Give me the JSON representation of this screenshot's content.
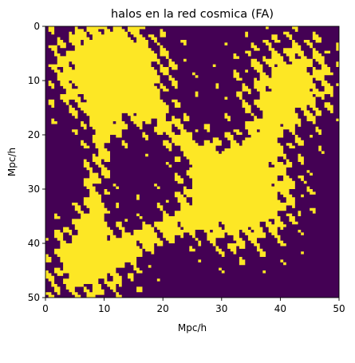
{
  "chart_data": {
    "type": "heatmap",
    "title": "halos en la red cosmica (FA)",
    "xlabel": "Mpc/h",
    "ylabel": "Mpc/h",
    "xlim": [
      0,
      50
    ],
    "ylim": [
      50,
      0
    ],
    "x_ticks": [
      0,
      10,
      20,
      30,
      40,
      50
    ],
    "y_ticks": [
      0,
      10,
      20,
      30,
      40,
      50
    ],
    "x_tick_labels": [
      "0",
      "10",
      "20",
      "30",
      "40",
      "50"
    ],
    "y_tick_labels": [
      "0",
      "10",
      "20",
      "30",
      "40",
      "50"
    ],
    "grid": false,
    "legend": "none",
    "colormap": "viridis",
    "values": [
      0,
      1
    ],
    "colors": {
      "background_value_0": "#440154",
      "halo_value_1": "#fde725"
    },
    "halo_centers": [
      {
        "x": 11,
        "y": 8
      },
      {
        "x": 33,
        "y": 31
      },
      {
        "x": 42,
        "y": 10
      },
      {
        "x": 7,
        "y": 44
      }
    ]
  }
}
